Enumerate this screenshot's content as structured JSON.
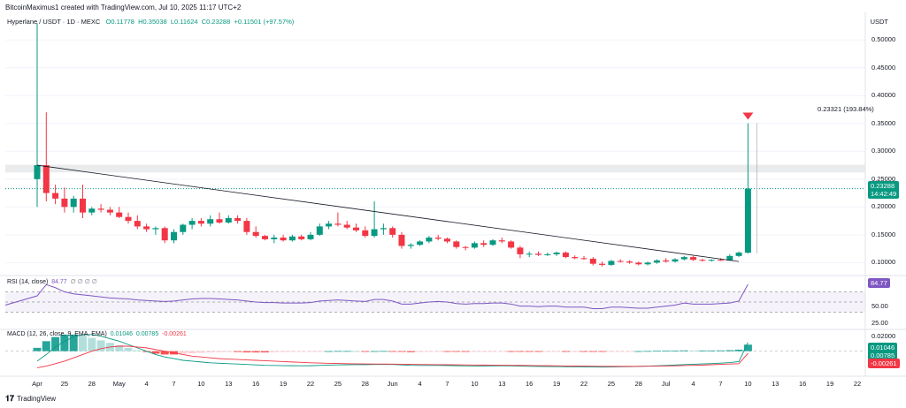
{
  "header": {
    "text": "BitcoinMaximus1 created with TradingView.com, Jul 10, 2025 11:17 UTC+2"
  },
  "legend": {
    "symbol": "Hyperlane / USDT · 1D · MEXC",
    "o": "O0.11778",
    "h": "H0.35038",
    "l": "L0.11624",
    "c": "C0.23288",
    "chg": "+0.11501 (+97.57%)"
  },
  "currency": "USDT",
  "price_axis": [
    "0.50000",
    "0.45000",
    "0.40000",
    "0.35000",
    "0.30000",
    "0.25000",
    "0.20000",
    "0.15000",
    "0.10000"
  ],
  "last_price": "0.23288",
  "countdown": "14:42:49",
  "target_label": "0.23321 (193.84%)",
  "rsi": {
    "label": "RSI (14, close)",
    "value_label": "84.77",
    "placeholders": "∅ ∅ ∅ ∅",
    "axis": [
      "50.00",
      "25.00"
    ],
    "badge": "84.77"
  },
  "macd": {
    "label": "MACD (12, 26, close, 9, EMA, EMA)",
    "v1": "0.01046",
    "v2": "0.00785",
    "v3": "-0.00261",
    "axis_top": "0.02000",
    "badges": [
      "0.01046",
      "0.00785",
      "-0.00261"
    ]
  },
  "x_axis": [
    "Apr",
    "25",
    "28",
    "May",
    "4",
    "7",
    "10",
    "13",
    "16",
    "19",
    "22",
    "25",
    "28",
    "Jun",
    "4",
    "7",
    "10",
    "13",
    "16",
    "19",
    "22",
    "25",
    "28",
    "Jul",
    "4",
    "7",
    "10",
    "13",
    "16",
    "19",
    "22"
  ],
  "branding": {
    "logo_text": "TradingView"
  },
  "colors": {
    "up": "#089981",
    "down": "#f23645",
    "rsi": "#7e57c2",
    "macd_line": "#089981",
    "signal_line": "#f23645"
  },
  "chart_data": {
    "type": "candlestick",
    "symbol": "Hyperlane / USDT",
    "interval": "1D",
    "exchange": "MEXC",
    "ylim": [
      0.08,
      0.54
    ],
    "candles": [
      {
        "o": 0.25,
        "h": 0.53,
        "l": 0.2,
        "c": 0.275
      },
      {
        "o": 0.275,
        "h": 0.37,
        "l": 0.21,
        "c": 0.225
      },
      {
        "o": 0.225,
        "h": 0.24,
        "l": 0.205,
        "c": 0.215
      },
      {
        "o": 0.215,
        "h": 0.235,
        "l": 0.19,
        "c": 0.2
      },
      {
        "o": 0.2,
        "h": 0.22,
        "l": 0.19,
        "c": 0.215
      },
      {
        "o": 0.215,
        "h": 0.24,
        "l": 0.18,
        "c": 0.19
      },
      {
        "o": 0.19,
        "h": 0.2,
        "l": 0.185,
        "c": 0.197
      },
      {
        "o": 0.197,
        "h": 0.205,
        "l": 0.19,
        "c": 0.195
      },
      {
        "o": 0.195,
        "h": 0.2,
        "l": 0.185,
        "c": 0.19
      },
      {
        "o": 0.19,
        "h": 0.2,
        "l": 0.18,
        "c": 0.182
      },
      {
        "o": 0.182,
        "h": 0.19,
        "l": 0.17,
        "c": 0.175
      },
      {
        "o": 0.175,
        "h": 0.185,
        "l": 0.16,
        "c": 0.165
      },
      {
        "o": 0.165,
        "h": 0.17,
        "l": 0.155,
        "c": 0.16
      },
      {
        "o": 0.16,
        "h": 0.165,
        "l": 0.15,
        "c": 0.162
      },
      {
        "o": 0.162,
        "h": 0.165,
        "l": 0.135,
        "c": 0.14
      },
      {
        "o": 0.14,
        "h": 0.16,
        "l": 0.135,
        "c": 0.155
      },
      {
        "o": 0.155,
        "h": 0.17,
        "l": 0.15,
        "c": 0.168
      },
      {
        "o": 0.168,
        "h": 0.18,
        "l": 0.16,
        "c": 0.175
      },
      {
        "o": 0.175,
        "h": 0.18,
        "l": 0.165,
        "c": 0.17
      },
      {
        "o": 0.17,
        "h": 0.185,
        "l": 0.165,
        "c": 0.178
      },
      {
        "o": 0.178,
        "h": 0.19,
        "l": 0.17,
        "c": 0.172
      },
      {
        "o": 0.172,
        "h": 0.185,
        "l": 0.17,
        "c": 0.18
      },
      {
        "o": 0.18,
        "h": 0.185,
        "l": 0.17,
        "c": 0.175
      },
      {
        "o": 0.175,
        "h": 0.18,
        "l": 0.15,
        "c": 0.155
      },
      {
        "o": 0.155,
        "h": 0.165,
        "l": 0.145,
        "c": 0.148
      },
      {
        "o": 0.148,
        "h": 0.15,
        "l": 0.14,
        "c": 0.142
      },
      {
        "o": 0.142,
        "h": 0.15,
        "l": 0.135,
        "c": 0.145
      },
      {
        "o": 0.145,
        "h": 0.15,
        "l": 0.138,
        "c": 0.14
      },
      {
        "o": 0.14,
        "h": 0.15,
        "l": 0.138,
        "c": 0.147
      },
      {
        "o": 0.147,
        "h": 0.15,
        "l": 0.14,
        "c": 0.142
      },
      {
        "o": 0.142,
        "h": 0.155,
        "l": 0.14,
        "c": 0.15
      },
      {
        "o": 0.15,
        "h": 0.17,
        "l": 0.148,
        "c": 0.165
      },
      {
        "o": 0.165,
        "h": 0.175,
        "l": 0.16,
        "c": 0.17
      },
      {
        "o": 0.17,
        "h": 0.19,
        "l": 0.165,
        "c": 0.168
      },
      {
        "o": 0.168,
        "h": 0.175,
        "l": 0.16,
        "c": 0.163
      },
      {
        "o": 0.163,
        "h": 0.17,
        "l": 0.155,
        "c": 0.158
      },
      {
        "o": 0.158,
        "h": 0.165,
        "l": 0.145,
        "c": 0.148
      },
      {
        "o": 0.148,
        "h": 0.21,
        "l": 0.145,
        "c": 0.16
      },
      {
        "o": 0.16,
        "h": 0.17,
        "l": 0.15,
        "c": 0.162
      },
      {
        "o": 0.162,
        "h": 0.165,
        "l": 0.145,
        "c": 0.15
      },
      {
        "o": 0.15,
        "h": 0.155,
        "l": 0.125,
        "c": 0.13
      },
      {
        "o": 0.13,
        "h": 0.135,
        "l": 0.125,
        "c": 0.132
      },
      {
        "o": 0.132,
        "h": 0.14,
        "l": 0.13,
        "c": 0.138
      },
      {
        "o": 0.138,
        "h": 0.148,
        "l": 0.135,
        "c": 0.145
      },
      {
        "o": 0.145,
        "h": 0.15,
        "l": 0.14,
        "c": 0.143
      },
      {
        "o": 0.143,
        "h": 0.145,
        "l": 0.135,
        "c": 0.138
      },
      {
        "o": 0.138,
        "h": 0.14,
        "l": 0.125,
        "c": 0.128
      },
      {
        "o": 0.128,
        "h": 0.13,
        "l": 0.122,
        "c": 0.127
      },
      {
        "o": 0.127,
        "h": 0.138,
        "l": 0.125,
        "c": 0.135
      },
      {
        "o": 0.135,
        "h": 0.14,
        "l": 0.128,
        "c": 0.132
      },
      {
        "o": 0.132,
        "h": 0.142,
        "l": 0.13,
        "c": 0.14
      },
      {
        "o": 0.14,
        "h": 0.145,
        "l": 0.135,
        "c": 0.138
      },
      {
        "o": 0.138,
        "h": 0.14,
        "l": 0.125,
        "c": 0.127
      },
      {
        "o": 0.127,
        "h": 0.13,
        "l": 0.108,
        "c": 0.115
      },
      {
        "o": 0.115,
        "h": 0.12,
        "l": 0.11,
        "c": 0.116
      },
      {
        "o": 0.116,
        "h": 0.12,
        "l": 0.112,
        "c": 0.114
      },
      {
        "o": 0.114,
        "h": 0.118,
        "l": 0.112,
        "c": 0.115
      },
      {
        "o": 0.115,
        "h": 0.12,
        "l": 0.112,
        "c": 0.118
      },
      {
        "o": 0.118,
        "h": 0.12,
        "l": 0.108,
        "c": 0.11
      },
      {
        "o": 0.11,
        "h": 0.113,
        "l": 0.106,
        "c": 0.108
      },
      {
        "o": 0.108,
        "h": 0.112,
        "l": 0.105,
        "c": 0.107
      },
      {
        "o": 0.107,
        "h": 0.11,
        "l": 0.095,
        "c": 0.098
      },
      {
        "o": 0.098,
        "h": 0.102,
        "l": 0.093,
        "c": 0.096
      },
      {
        "o": 0.096,
        "h": 0.105,
        "l": 0.094,
        "c": 0.103
      },
      {
        "o": 0.103,
        "h": 0.106,
        "l": 0.1,
        "c": 0.102
      },
      {
        "o": 0.102,
        "h": 0.104,
        "l": 0.098,
        "c": 0.1
      },
      {
        "o": 0.1,
        "h": 0.102,
        "l": 0.095,
        "c": 0.097
      },
      {
        "o": 0.097,
        "h": 0.102,
        "l": 0.095,
        "c": 0.1
      },
      {
        "o": 0.1,
        "h": 0.106,
        "l": 0.098,
        "c": 0.104
      },
      {
        "o": 0.104,
        "h": 0.108,
        "l": 0.1,
        "c": 0.102
      },
      {
        "o": 0.102,
        "h": 0.108,
        "l": 0.1,
        "c": 0.106
      },
      {
        "o": 0.106,
        "h": 0.112,
        "l": 0.104,
        "c": 0.11
      },
      {
        "o": 0.11,
        "h": 0.112,
        "l": 0.103,
        "c": 0.105
      },
      {
        "o": 0.105,
        "h": 0.107,
        "l": 0.102,
        "c": 0.104
      },
      {
        "o": 0.104,
        "h": 0.106,
        "l": 0.102,
        "c": 0.105
      },
      {
        "o": 0.105,
        "h": 0.108,
        "l": 0.103,
        "c": 0.104
      },
      {
        "o": 0.104,
        "h": 0.115,
        "l": 0.103,
        "c": 0.112
      },
      {
        "o": 0.112,
        "h": 0.12,
        "l": 0.11,
        "c": 0.118
      },
      {
        "o": 0.11778,
        "h": 0.35038,
        "l": 0.11624,
        "c": 0.23288
      }
    ],
    "trendline": {
      "from": {
        "index": 0,
        "price": 0.275
      },
      "to": {
        "index": 77,
        "price": 0.102
      }
    },
    "resistance_zone": [
      0.262,
      0.276
    ],
    "rsi": [
      62,
      84,
      78,
      70,
      66,
      64,
      62,
      60,
      58,
      57,
      56,
      54,
      53,
      52,
      51,
      52,
      54,
      56,
      57,
      57,
      56,
      55,
      54,
      52,
      50,
      49,
      49,
      48,
      48,
      48,
      49,
      52,
      53,
      54,
      53,
      52,
      51,
      55,
      55,
      52,
      46,
      46,
      48,
      50,
      51,
      50,
      47,
      46,
      47,
      47,
      48,
      48,
      46,
      42,
      42,
      41,
      42,
      42,
      40,
      40,
      40,
      37,
      37,
      40,
      40,
      39,
      38,
      38,
      40,
      42,
      44,
      48,
      46,
      46,
      46,
      47,
      48,
      52,
      84.77
    ],
    "rsi_range": [
      0,
      100
    ],
    "rsi_levels": [
      70,
      50,
      30
    ],
    "macd": {
      "histogram": [
        0.004,
        0.012,
        0.017,
        0.02,
        0.02,
        0.019,
        0.016,
        0.013,
        0.01,
        0.007,
        0.004,
        0.001,
        -0.001,
        -0.003,
        -0.004,
        -0.004,
        -0.003,
        -0.0025,
        -0.002,
        -0.0015,
        -0.0012,
        -0.001,
        -0.001,
        -0.0015,
        -0.0015,
        -0.0015,
        -0.0012,
        -0.001,
        -0.0008,
        -0.0007,
        -0.0005,
        -0.0003,
        0.0,
        0.0002,
        0.0002,
        0.0,
        -0.0002,
        0.0,
        0.0002,
        -0.0003,
        -0.0008,
        -0.0012,
        -0.001,
        -0.0008,
        -0.0006,
        -0.0006,
        -0.0008,
        -0.0008,
        -0.0006,
        -0.0005,
        -0.0003,
        -0.0002,
        -0.0004,
        -0.0008,
        -0.0008,
        -0.0008,
        -0.0006,
        -0.0005,
        -0.0005,
        -0.0004,
        -0.0004,
        -0.0006,
        -0.0006,
        -0.0003,
        -0.0002,
        -0.0001,
        0.0,
        0.0002,
        0.0004,
        0.0005,
        0.0007,
        0.0009,
        0.0008,
        0.0008,
        0.0008,
        0.0009,
        0.0012,
        0.0018,
        0.00785
      ],
      "macd_line": [
        -0.012,
        -0.004,
        0.005,
        0.012,
        0.017,
        0.02,
        0.02,
        0.018,
        0.015,
        0.012,
        0.008,
        0.004,
        0.0,
        -0.004,
        -0.007,
        -0.009,
        -0.011,
        -0.012,
        -0.013,
        -0.014,
        -0.0145,
        -0.015,
        -0.0155,
        -0.016,
        -0.0165,
        -0.017,
        -0.0172,
        -0.0174,
        -0.0175,
        -0.0176,
        -0.0175,
        -0.0172,
        -0.0168,
        -0.0165,
        -0.0163,
        -0.0162,
        -0.0162,
        -0.016,
        -0.0158,
        -0.016,
        -0.0165,
        -0.017,
        -0.0172,
        -0.0172,
        -0.0172,
        -0.0173,
        -0.0175,
        -0.0177,
        -0.0178,
        -0.0178,
        -0.0177,
        -0.0176,
        -0.0177,
        -0.018,
        -0.0182,
        -0.0184,
        -0.0185,
        -0.0186,
        -0.0187,
        -0.0188,
        -0.0189,
        -0.019,
        -0.0191,
        -0.019,
        -0.0188,
        -0.0186,
        -0.0183,
        -0.018,
        -0.0176,
        -0.0172,
        -0.0167,
        -0.0161,
        -0.0157,
        -0.0153,
        -0.0149,
        -0.0144,
        -0.0137,
        -0.0125,
        0.01046
      ],
      "signal_line": [
        -0.02,
        -0.018,
        -0.015,
        -0.012,
        -0.008,
        -0.004,
        0.0,
        0.003,
        0.005,
        0.006,
        0.006,
        0.005,
        0.004,
        0.002,
        0.0,
        -0.002,
        -0.004,
        -0.006,
        -0.007,
        -0.008,
        -0.009,
        -0.0095,
        -0.01,
        -0.0105,
        -0.011,
        -0.0115,
        -0.012,
        -0.0125,
        -0.013,
        -0.0135,
        -0.014,
        -0.0143,
        -0.0146,
        -0.0148,
        -0.015,
        -0.0152,
        -0.0153,
        -0.0154,
        -0.0155,
        -0.0156,
        -0.0157,
        -0.0158,
        -0.016,
        -0.0161,
        -0.0162,
        -0.0163,
        -0.0164,
        -0.0165,
        -0.0166,
        -0.0167,
        -0.0168,
        -0.0169,
        -0.017,
        -0.0171,
        -0.0172,
        -0.0174,
        -0.0175,
        -0.0176,
        -0.0178,
        -0.0179,
        -0.018,
        -0.0181,
        -0.0182,
        -0.0183,
        -0.0183,
        -0.0183,
        -0.0182,
        -0.0181,
        -0.018,
        -0.0178,
        -0.0176,
        -0.0173,
        -0.017,
        -0.0167,
        -0.0163,
        -0.0159,
        -0.0155,
        -0.015,
        -0.00261
      ],
      "range": [
        -0.028,
        0.023
      ]
    }
  }
}
